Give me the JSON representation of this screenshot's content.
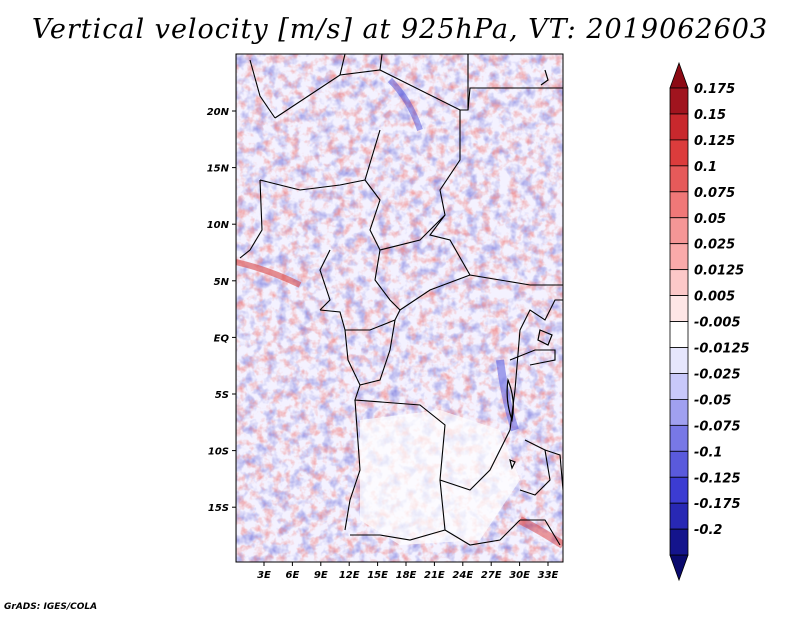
{
  "title": "Vertical velocity [m/s] at 925hPa, VT: 2019062603",
  "footer": "GrADS: IGES/COLA",
  "map": {
    "lon_ticks": [
      "3E",
      "6E",
      "9E",
      "12E",
      "15E",
      "18E",
      "21E",
      "24E",
      "27E",
      "30E",
      "33E"
    ],
    "lat_ticks": [
      "20N",
      "15N",
      "10N",
      "5N",
      "EQ",
      "5S",
      "10S",
      "15S"
    ]
  },
  "colorbar": {
    "levels": [
      "0.175",
      "0.15",
      "0.125",
      "0.1",
      "0.075",
      "0.05",
      "0.025",
      "0.0125",
      "0.005",
      "-0.005",
      "-0.0125",
      "-0.025",
      "-0.05",
      "-0.075",
      "-0.1",
      "-0.125",
      "-0.175",
      "-0.2"
    ],
    "colors": [
      "#a0141e",
      "#c8282d",
      "#dc3c3c",
      "#e65a5a",
      "#f07878",
      "#f59696",
      "#faaaaa",
      "#fcc8c8",
      "#fee6e6",
      "#ffffff",
      "#e6e6fc",
      "#c8c8fa",
      "#a0a0f0",
      "#7878e6",
      "#5a5adc",
      "#3c3cd2",
      "#2828b4",
      "#14148c"
    ],
    "top_color": "#8c0a14",
    "bottom_color": "#0a0a6e"
  }
}
